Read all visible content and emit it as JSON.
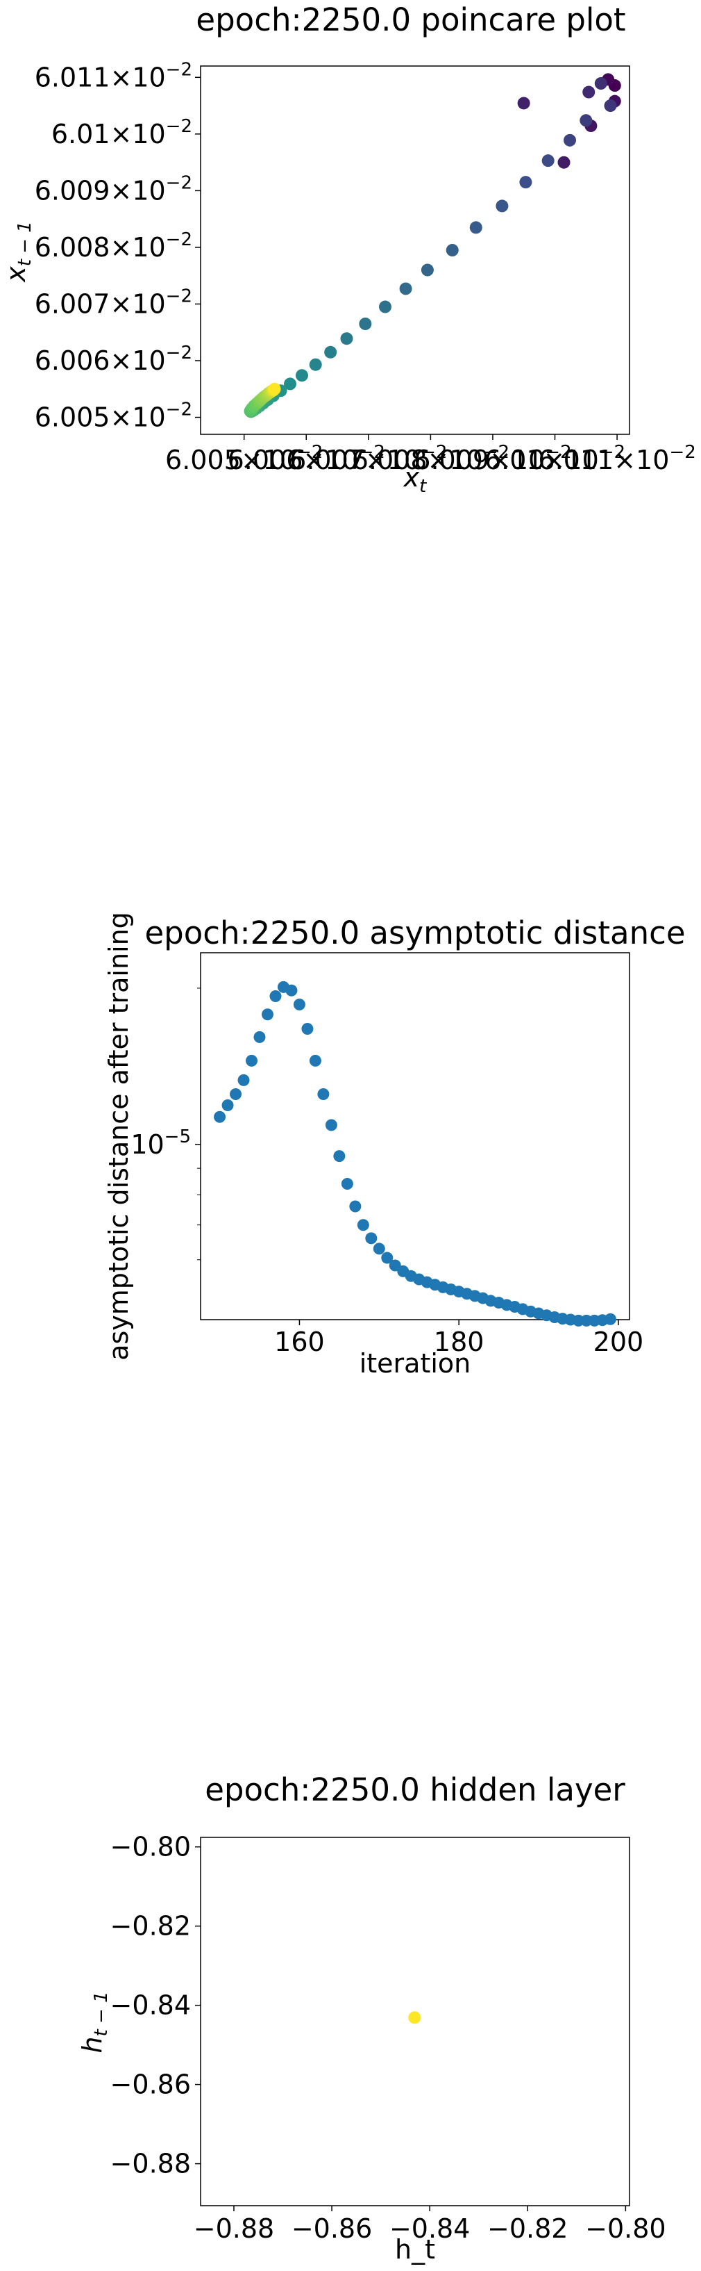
{
  "chart_data": [
    {
      "type": "scatter",
      "title": "epoch:2250.0 poincare plot",
      "xlabel": "x_t",
      "ylabel": "x_{t-1}",
      "x_tick_labels": [
        "6.005×10⁻²",
        "6.006×10⁻²",
        "6.007×10⁻²",
        "6.008×10⁻²",
        "6.009×10⁻²",
        "6.01×10⁻²",
        "6.011×10⁻²"
      ],
      "y_tick_labels": [
        "6.005×10⁻²",
        "6.006×10⁻²",
        "6.007×10⁻²",
        "6.008×10⁻²",
        "6.009×10⁻²",
        "6.01×10⁻²",
        "6.011×10⁻²"
      ],
      "xlim": [
        0.060043,
        0.060112
      ],
      "ylim": [
        0.060047,
        0.060112
      ],
      "colormap": "viridis (early=purple, late=yellow)",
      "grid": false,
      "points": [
        {
          "x": 0.06010963,
          "y": 0.06010856
        },
        {
          "x": 0.06010856,
          "y": 0.06010963
        },
        {
          "x": 0.06010963,
          "y": 0.06010579
        },
        {
          "x": 0.06010579,
          "y": 0.06010145
        },
        {
          "x": 0.06010145,
          "y": 0.06009499
        },
        {
          "x": 0.06009499,
          "y": 0.06010544
        },
        {
          "x": 0.06010544,
          "y": 0.0601074
        },
        {
          "x": 0.0601074,
          "y": 0.06010893
        },
        {
          "x": 0.06010893,
          "y": 0.060105
        },
        {
          "x": 0.060105,
          "y": 0.0601024
        },
        {
          "x": 0.0601024,
          "y": 0.0600989
        },
        {
          "x": 0.0600989,
          "y": 0.0600953
        },
        {
          "x": 0.0600953,
          "y": 0.0600915
        },
        {
          "x": 0.0600915,
          "y": 0.0600873
        },
        {
          "x": 0.0600873,
          "y": 0.0600835
        },
        {
          "x": 0.0600835,
          "y": 0.0600795
        },
        {
          "x": 0.0600795,
          "y": 0.060076
        },
        {
          "x": 0.060076,
          "y": 0.0600727
        },
        {
          "x": 0.0600727,
          "y": 0.0600695
        },
        {
          "x": 0.0600695,
          "y": 0.0600665
        },
        {
          "x": 0.0600665,
          "y": 0.0600639
        },
        {
          "x": 0.0600639,
          "y": 0.0600615
        },
        {
          "x": 0.0600615,
          "y": 0.0600593
        },
        {
          "x": 0.0600593,
          "y": 0.0600574
        },
        {
          "x": 0.0600574,
          "y": 0.0600559
        },
        {
          "x": 0.0600559,
          "y": 0.0600547
        },
        {
          "x": 0.0600547,
          "y": 0.0600538
        },
        {
          "x": 0.0600538,
          "y": 0.0600531
        },
        {
          "x": 0.0600531,
          "y": 0.0600525
        },
        {
          "x": 0.0600525,
          "y": 0.060052
        },
        {
          "x": 0.060052,
          "y": 0.0600516
        },
        {
          "x": 0.0600516,
          "y": 0.0600513
        },
        {
          "x": 0.0600513,
          "y": 0.0600511
        },
        {
          "x": 0.0600511,
          "y": 0.060051
        },
        {
          "x": 0.060051,
          "y": 0.0600511
        },
        {
          "x": 0.0600511,
          "y": 0.0600513
        },
        {
          "x": 0.0600513,
          "y": 0.0600516
        },
        {
          "x": 0.0600516,
          "y": 0.060052
        },
        {
          "x": 0.060052,
          "y": 0.0600524
        },
        {
          "x": 0.0600524,
          "y": 0.0600528
        },
        {
          "x": 0.0600528,
          "y": 0.0600532
        },
        {
          "x": 0.0600532,
          "y": 0.0600536
        },
        {
          "x": 0.0600536,
          "y": 0.0600539
        },
        {
          "x": 0.0600539,
          "y": 0.0600542
        },
        {
          "x": 0.0600542,
          "y": 0.0600544
        },
        {
          "x": 0.0600544,
          "y": 0.0600546
        },
        {
          "x": 0.0600546,
          "y": 0.0600547
        },
        {
          "x": 0.0600547,
          "y": 0.0600548
        },
        {
          "x": 0.0600548,
          "y": 0.0600549
        },
        {
          "x": 0.0600549,
          "y": 0.060055
        }
      ]
    },
    {
      "type": "scatter",
      "title": "epoch:2250.0 asymptotic distance",
      "xlabel": "iteration",
      "ylabel": "asymptotic distance after training",
      "y_scale": "log",
      "x_ticks": [
        160,
        180,
        200
      ],
      "y_tick_labels": [
        "10⁻⁵"
      ],
      "xlim": [
        147.6,
        201.4
      ],
      "ylim": [
        4.6e-06,
        2.34e-05
      ],
      "color": "#1f77b4",
      "grid": false,
      "x": [
        150,
        151,
        152,
        153,
        154,
        155,
        156,
        157,
        158,
        159,
        160,
        161,
        162,
        163,
        164,
        165,
        166,
        167,
        168,
        169,
        170,
        171,
        172,
        173,
        174,
        175,
        176,
        177,
        178,
        179,
        180,
        181,
        182,
        183,
        184,
        185,
        186,
        187,
        188,
        189,
        190,
        191,
        192,
        193,
        194,
        195,
        196,
        197,
        198,
        199
      ],
      "y": [
        1.13e-05,
        1.19e-05,
        1.25e-05,
        1.33e-05,
        1.45e-05,
        1.61e-05,
        1.78e-05,
        1.93e-05,
        2.01e-05,
        1.98e-05,
        1.86e-05,
        1.67e-05,
        1.45e-05,
        1.25e-05,
        1.09e-05,
        9.5e-06,
        8.4e-06,
        7.6e-06,
        7e-06,
        6.6e-06,
        6.3e-06,
        6.05e-06,
        5.85e-06,
        5.7e-06,
        5.58e-06,
        5.5e-06,
        5.43e-06,
        5.37e-06,
        5.31e-06,
        5.26e-06,
        5.21e-06,
        5.16e-06,
        5.11e-06,
        5.06e-06,
        5e-06,
        4.96e-06,
        4.91e-06,
        4.87e-06,
        4.82e-06,
        4.77e-06,
        4.73e-06,
        4.69e-06,
        4.65e-06,
        4.62e-06,
        4.6e-06,
        4.58e-06,
        4.58e-06,
        4.58e-06,
        4.59e-06,
        4.61e-06
      ]
    },
    {
      "type": "scatter",
      "title": "epoch:2250.0 hidden layer",
      "xlabel": "h_t",
      "ylabel": "h_{t-1}",
      "x_ticks": [
        -0.88,
        -0.86,
        -0.84,
        -0.82,
        -0.8
      ],
      "y_ticks": [
        -0.88,
        -0.86,
        -0.84,
        -0.82,
        -0.8
      ],
      "x_tick_labels": [
        "−0.88",
        "−0.86",
        "−0.84",
        "−0.82",
        "−0.80"
      ],
      "y_tick_labels": [
        "−0.88",
        "−0.86",
        "−0.84",
        "−0.82",
        "−0.80"
      ],
      "xlim": [
        -0.8868,
        -0.7992
      ],
      "ylim": [
        -0.8906,
        -0.7976
      ],
      "color": "#fde725",
      "grid": false,
      "points": [
        {
          "x": -0.8431,
          "y": -0.8431
        }
      ]
    }
  ]
}
